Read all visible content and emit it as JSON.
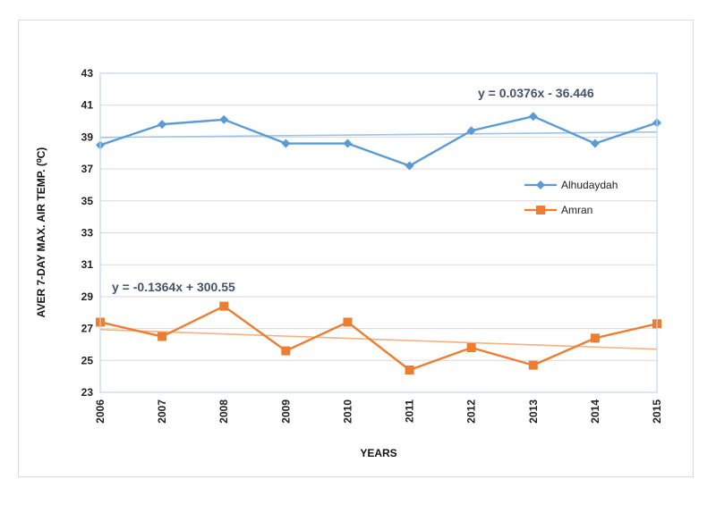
{
  "chart_data": {
    "type": "line",
    "title": "",
    "xlabel": "YEARS",
    "ylabel": "AVER 7-DAY MAX. AIR TEMP. (⁰C)",
    "x": [
      2006,
      2007,
      2008,
      2009,
      2010,
      2011,
      2012,
      2013,
      2014,
      2015
    ],
    "ylim": [
      23,
      43
    ],
    "yticks": [
      23,
      25,
      27,
      29,
      31,
      33,
      35,
      37,
      39,
      41,
      43
    ],
    "grid": true,
    "legend_position": "right",
    "series": [
      {
        "name": "Alhudaydah",
        "color": "#5b9bd5",
        "trend_color": "#9dc3e6",
        "marker": "diamond",
        "values": [
          38.5,
          39.8,
          40.1,
          38.6,
          38.6,
          37.2,
          39.4,
          40.3,
          38.6,
          39.9
        ],
        "trendline": {
          "slope": 0.0376,
          "intercept": -36.446,
          "equation": "y = 0.0376x - 36.446"
        }
      },
      {
        "name": "Amran",
        "color": "#ed7d31",
        "trend_color": "#f4b183",
        "marker": "square",
        "values": [
          27.4,
          26.5,
          28.4,
          25.6,
          27.4,
          24.4,
          25.8,
          24.7,
          26.4,
          27.3
        ],
        "trendline": {
          "slope": -0.1364,
          "intercept": 300.55,
          "equation": "y = -0.1364x + 300.55"
        }
      }
    ]
  }
}
